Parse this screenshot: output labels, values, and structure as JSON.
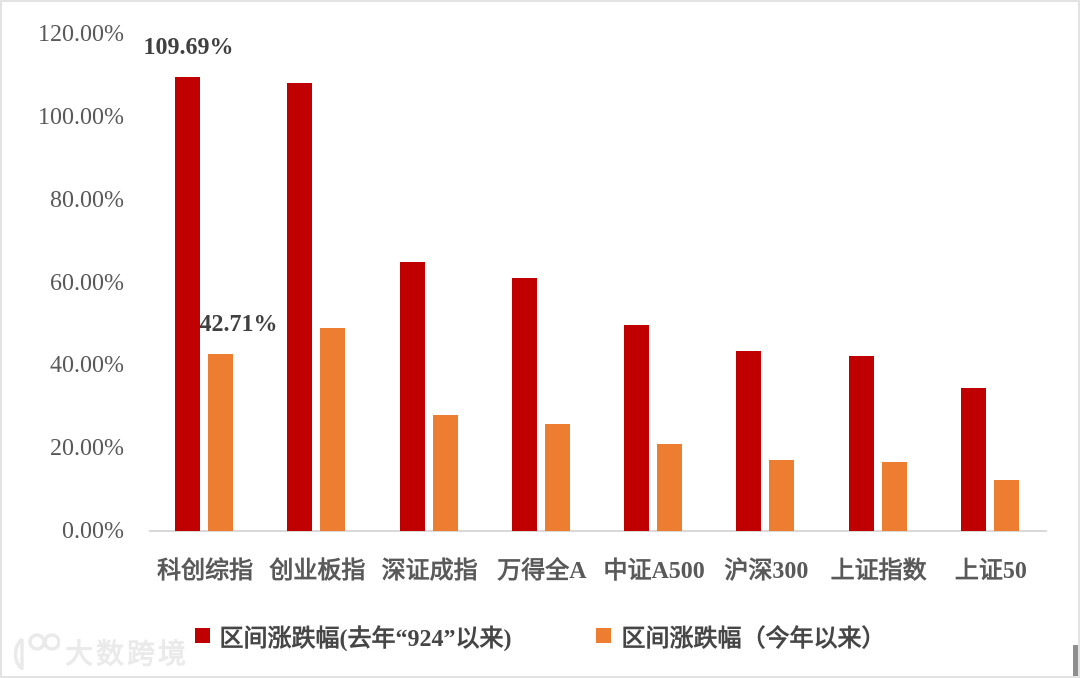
{
  "chart_data": {
    "type": "bar",
    "title": "",
    "unit": "%",
    "categories": [
      "科创综指",
      "创业板指",
      "深证成指",
      "万得全A",
      "中证A500",
      "沪深300",
      "上证指数",
      "上证50"
    ],
    "series": [
      {
        "name": "区间涨跌幅(去年“924”以来)",
        "color": "#C00000",
        "values": [
          109.69,
          108.1,
          65.0,
          61.1,
          49.7,
          43.4,
          42.3,
          34.6
        ]
      },
      {
        "name": "区间涨跌幅（今年以来）",
        "color": "#ED7D31",
        "values": [
          42.71,
          48.9,
          28.1,
          25.9,
          20.9,
          17.1,
          16.7,
          12.2
        ]
      }
    ],
    "xlabel": "",
    "ylabel": "",
    "ylim": [
      0,
      120
    ],
    "grid": false,
    "legend_position": "bottom",
    "y_ticks": [
      {
        "value": 0,
        "label": "0.00%"
      },
      {
        "value": 20,
        "label": "20.00%"
      },
      {
        "value": 40,
        "label": "40.00%"
      },
      {
        "value": 60,
        "label": "60.00%"
      },
      {
        "value": 80,
        "label": "80.00%"
      },
      {
        "value": 100,
        "label": "100.00%"
      },
      {
        "value": 120,
        "label": "120.00%"
      }
    ],
    "annotations": [
      {
        "series": 0,
        "category": 0,
        "text": "109.69%",
        "dx": 1
      },
      {
        "series": 1,
        "category": 0,
        "text": "42.71%",
        "dx": 18
      }
    ],
    "axis_line_color": "#D9D9D9",
    "tick_label_color": "#595959",
    "data_label_color": "#404040"
  },
  "watermark": {
    "text": "大数跨境",
    "logo": "100-swoosh-logo"
  }
}
